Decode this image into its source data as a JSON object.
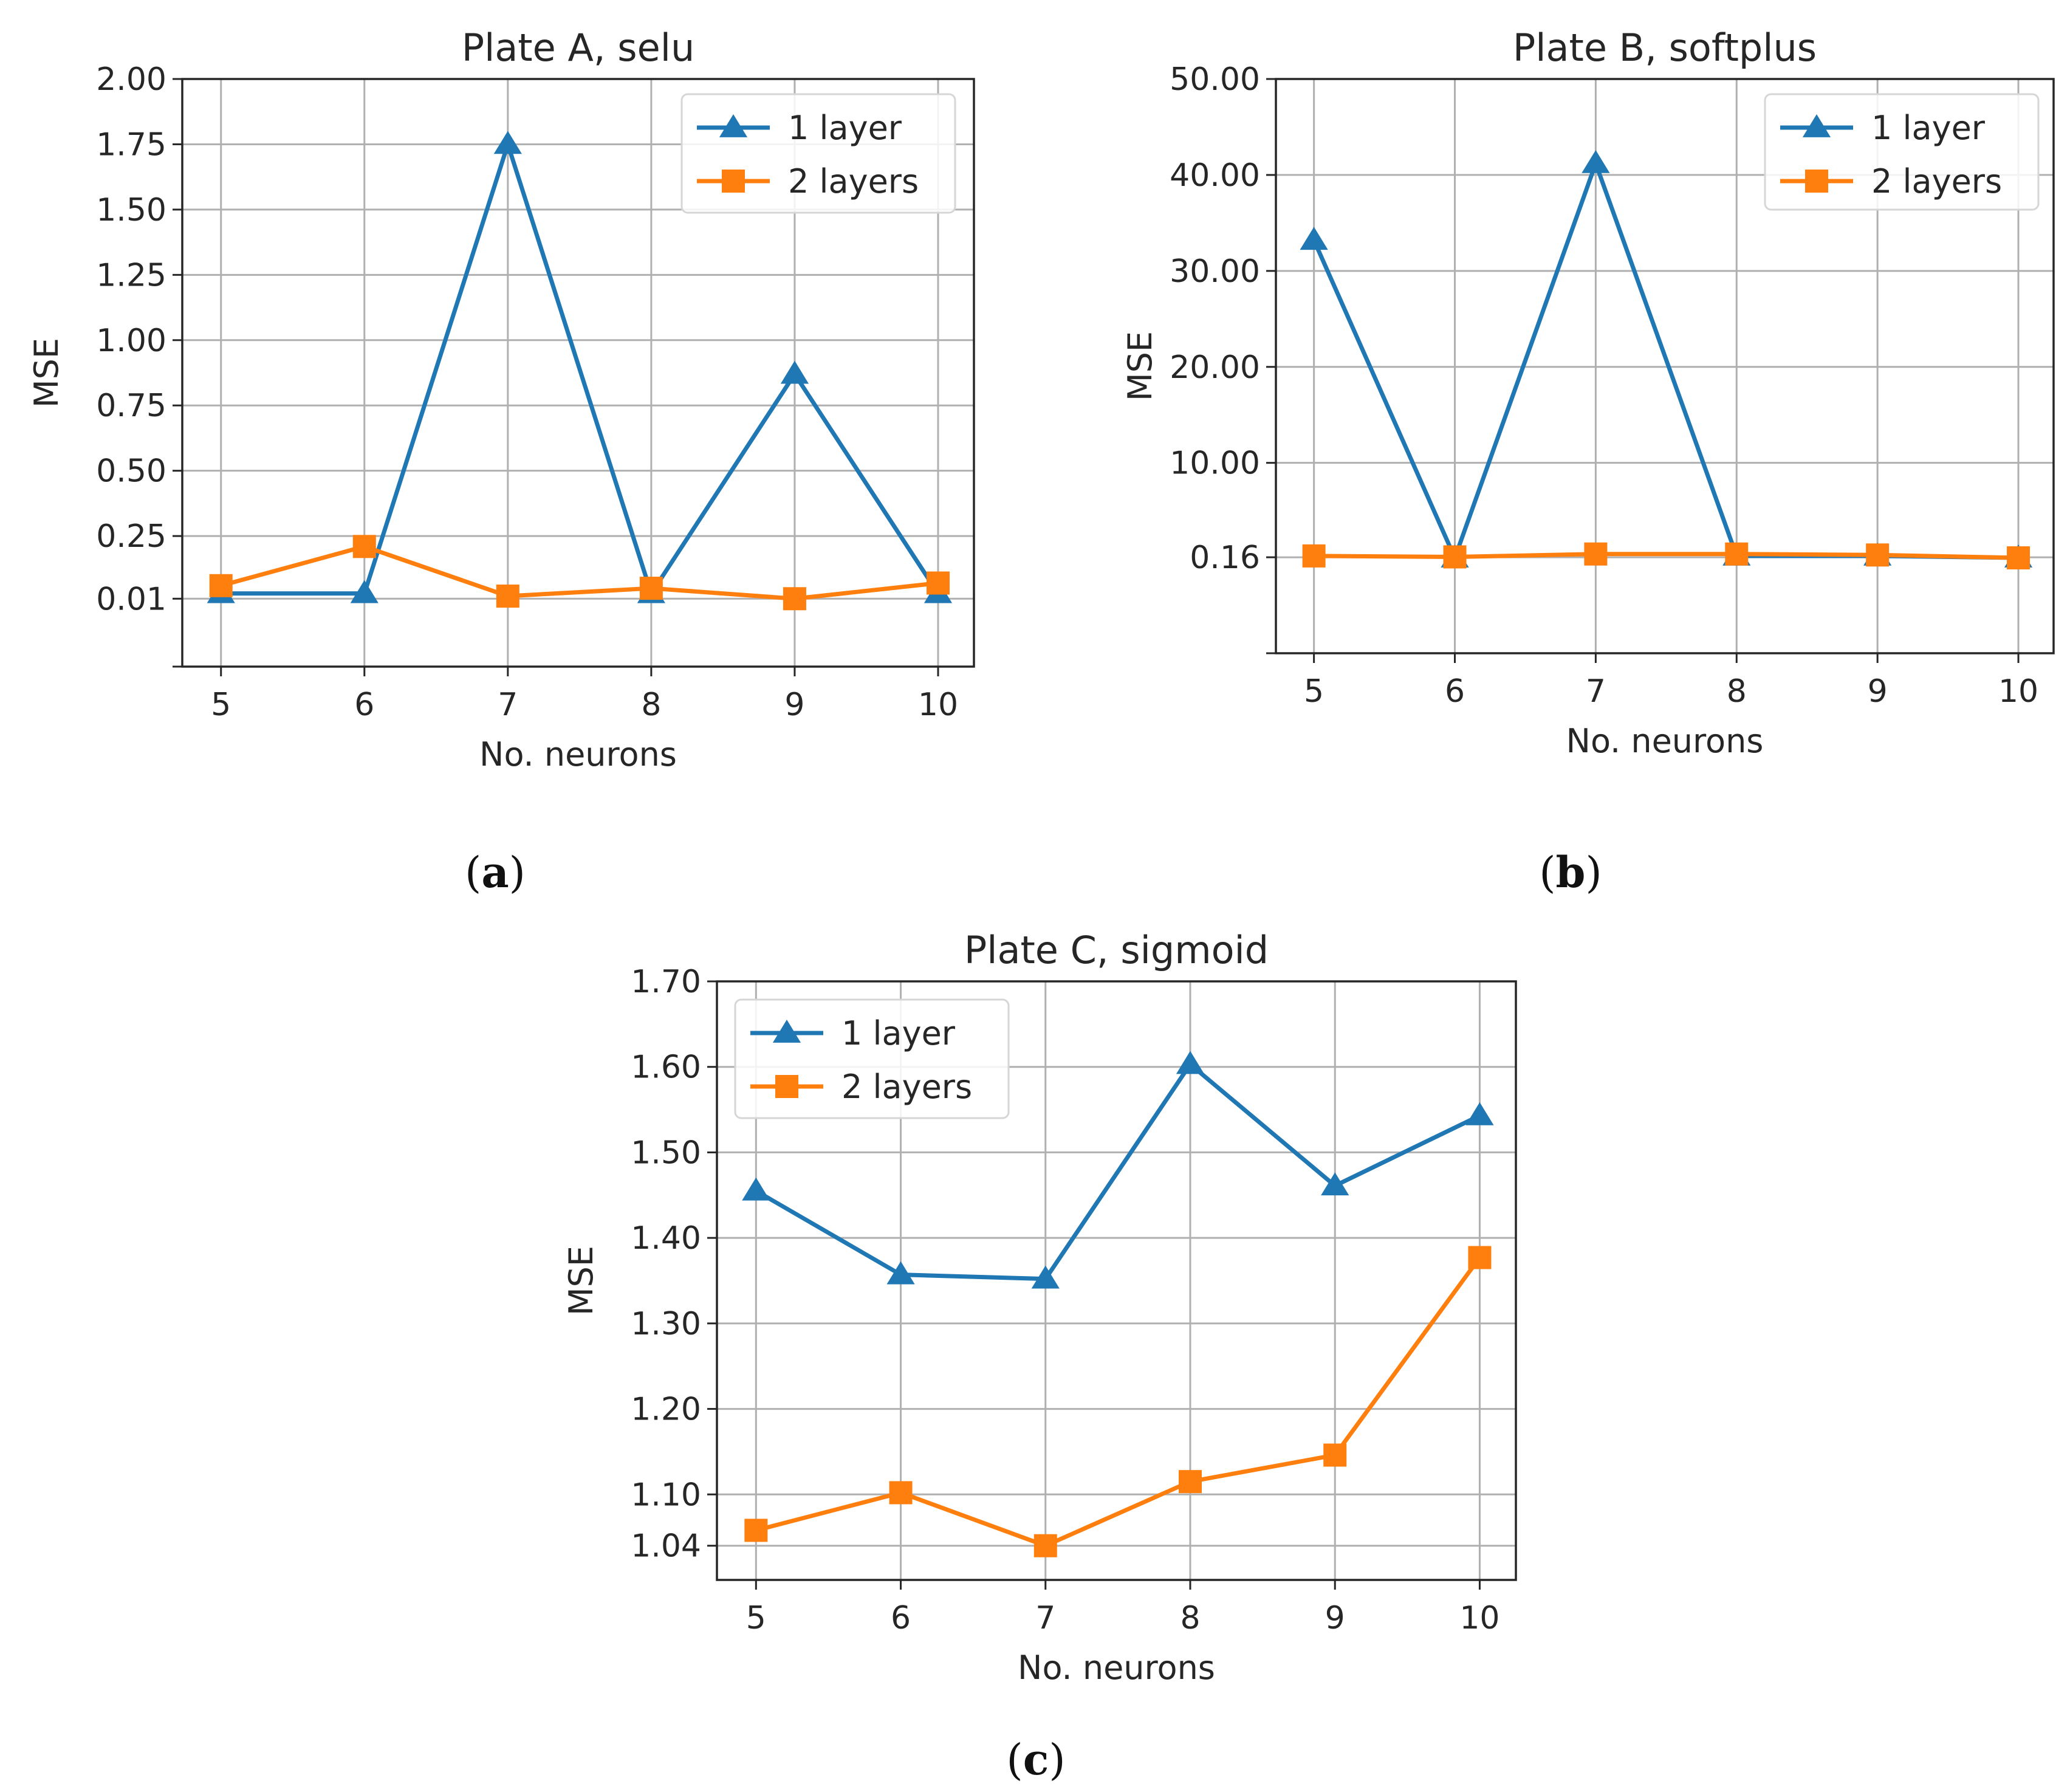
{
  "chart_data": [
    {
      "type": "line",
      "title": "Plate A, selu",
      "xlabel": "No. neurons",
      "ylabel": "MSE",
      "grid": true,
      "legend_position": "upper-right",
      "x": [
        5,
        6,
        7,
        8,
        9,
        10
      ],
      "xticks": [
        "5",
        "6",
        "7",
        "8",
        "9",
        "10"
      ],
      "xlim": [
        4.73,
        10.25
      ],
      "ylim": [
        -0.25,
        2.0
      ],
      "yticks": [
        {
          "value": 0.01,
          "label": "0.01"
        },
        {
          "value": 0.25,
          "label": "0.25"
        },
        {
          "value": 0.5,
          "label": "0.50"
        },
        {
          "value": 0.75,
          "label": "0.75"
        },
        {
          "value": 1.0,
          "label": "1.00"
        },
        {
          "value": 1.25,
          "label": "1.25"
        },
        {
          "value": 1.5,
          "label": "1.50"
        },
        {
          "value": 1.75,
          "label": "1.75"
        },
        {
          "value": 2.0,
          "label": "2.00"
        }
      ],
      "extra_ticks": [
        -0.25
      ],
      "series": [
        {
          "name": "1 layer",
          "color": "#1f77b4",
          "marker": "triangle",
          "values": [
            0.03,
            0.03,
            1.75,
            0.03,
            0.87,
            0.03
          ]
        },
        {
          "name": "2 layers",
          "color": "#ff7f0e",
          "marker": "square",
          "values": [
            0.06,
            0.21,
            0.02,
            0.05,
            0.01,
            0.07
          ]
        }
      ],
      "caption": "a"
    },
    {
      "type": "line",
      "title": "Plate B, softplus",
      "xlabel": "No. neurons",
      "ylabel": "MSE",
      "grid": true,
      "legend_position": "upper-right",
      "x": [
        5,
        6,
        7,
        8,
        9,
        10
      ],
      "xticks": [
        "5",
        "6",
        "7",
        "8",
        "9",
        "10"
      ],
      "xlim": [
        4.73,
        10.25
      ],
      "ylim": [
        -9.84,
        50.0
      ],
      "yticks": [
        {
          "value": 0.16,
          "label": "0.16"
        },
        {
          "value": 10.0,
          "label": "10.00"
        },
        {
          "value": 20.0,
          "label": "20.00"
        },
        {
          "value": 30.0,
          "label": "30.00"
        },
        {
          "value": 40.0,
          "label": "40.00"
        },
        {
          "value": 50.0,
          "label": "50.00"
        }
      ],
      "extra_ticks": [
        -9.84
      ],
      "series": [
        {
          "name": "1 layer",
          "color": "#1f77b4",
          "marker": "triangle",
          "values": [
            33.2,
            0.1,
            41.2,
            0.3,
            0.3,
            0.1
          ]
        },
        {
          "name": "2 layers",
          "color": "#ff7f0e",
          "marker": "square",
          "values": [
            0.3,
            0.2,
            0.5,
            0.5,
            0.4,
            0.1
          ]
        }
      ],
      "caption": "b"
    },
    {
      "type": "line",
      "title": "Plate C, sigmoid",
      "xlabel": "No. neurons",
      "ylabel": "MSE",
      "grid": true,
      "legend_position": "upper-left",
      "x": [
        5,
        6,
        7,
        8,
        9,
        10
      ],
      "xticks": [
        "5",
        "6",
        "7",
        "8",
        "9",
        "10"
      ],
      "xlim": [
        4.73,
        10.25
      ],
      "ylim": [
        1.0,
        1.7
      ],
      "yticks": [
        {
          "value": 1.04,
          "label": "1.04"
        },
        {
          "value": 1.1,
          "label": "1.10"
        },
        {
          "value": 1.2,
          "label": "1.20"
        },
        {
          "value": 1.3,
          "label": "1.30"
        },
        {
          "value": 1.4,
          "label": "1.40"
        },
        {
          "value": 1.5,
          "label": "1.50"
        },
        {
          "value": 1.6,
          "label": "1.60"
        },
        {
          "value": 1.7,
          "label": "1.70"
        }
      ],
      "extra_ticks": [],
      "series": [
        {
          "name": "1 layer",
          "color": "#1f77b4",
          "marker": "triangle",
          "values": [
            1.455,
            1.357,
            1.352,
            1.603,
            1.461,
            1.543
          ]
        },
        {
          "name": "2 layers",
          "color": "#ff7f0e",
          "marker": "square",
          "values": [
            1.058,
            1.102,
            1.04,
            1.115,
            1.146,
            1.377
          ]
        }
      ],
      "caption": "c"
    }
  ]
}
